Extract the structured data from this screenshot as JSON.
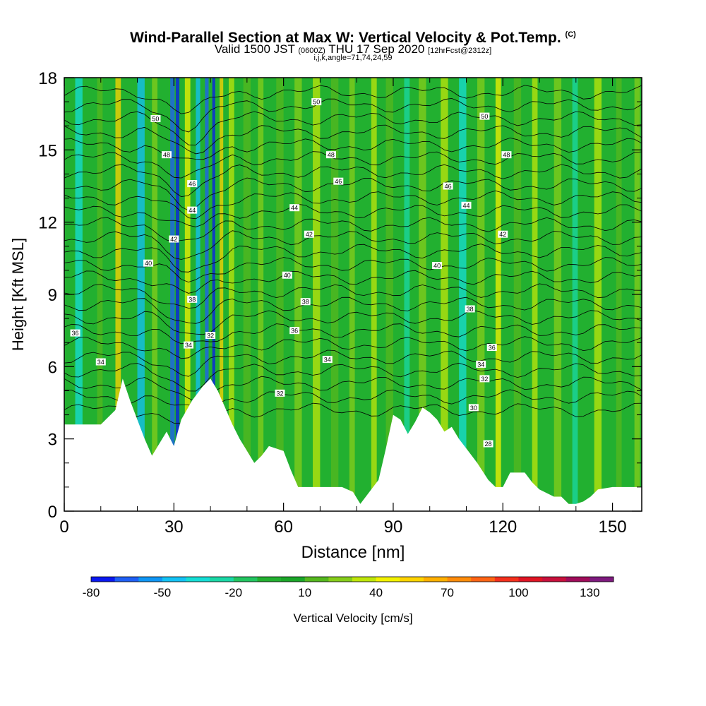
{
  "title": {
    "main": "Wind-Parallel Section at Max W: Vertical Velocity & Pot.Temp.",
    "copyright": "(C)",
    "valid_prefix": "Valid 1500 JST",
    "valid_z": "(0600Z)",
    "valid_date": "THU 17 Sep 2020",
    "forecast": "[12hrFcst@2312z]",
    "indices": "i,j,k,angle=71,74,24,59"
  },
  "chart_data": {
    "type": "heatmap",
    "xlabel": "Distance [nm]",
    "ylabel": "Height [Kft MSL]",
    "xlim": [
      0,
      158
    ],
    "ylim": [
      0,
      18
    ],
    "x_ticks": [
      0,
      30,
      60,
      90,
      120,
      150
    ],
    "y_ticks": [
      0,
      3,
      6,
      9,
      12,
      15,
      18
    ],
    "grid": false,
    "colorbar": {
      "label": "Vertical Velocity [cm/s]",
      "tick_labels": [
        "-80",
        "-50",
        "-20",
        "10",
        "40",
        "70",
        "100",
        "130"
      ],
      "levels": [
        -80,
        -70,
        -60,
        -50,
        -40,
        -30,
        -20,
        -10,
        0,
        10,
        20,
        30,
        40,
        50,
        60,
        70,
        80,
        90,
        100,
        110,
        120,
        130,
        140
      ],
      "colors": [
        "#0a18f0",
        "#1f5ff5",
        "#0f96f5",
        "#13c2f5",
        "#15ded6",
        "#1ad8a6",
        "#22c560",
        "#22b030",
        "#1aa628",
        "#55b81e",
        "#86cd1a",
        "#bfe60a",
        "#f3f200",
        "#ffd400",
        "#ffb000",
        "#ff8c0a",
        "#ff6414",
        "#f4301c",
        "#e01424",
        "#c8103c",
        "#a00c5a",
        "#7e1a7e"
      ]
    },
    "terrain_kft": [
      [
        0,
        3.6
      ],
      [
        5,
        3.6
      ],
      [
        10,
        3.6
      ],
      [
        14,
        4.2
      ],
      [
        16,
        5.5
      ],
      [
        18,
        4.6
      ],
      [
        20,
        3.8
      ],
      [
        22,
        3.0
      ],
      [
        24,
        2.3
      ],
      [
        26,
        2.8
      ],
      [
        28,
        3.3
      ],
      [
        30,
        2.7
      ],
      [
        32,
        3.8
      ],
      [
        35,
        4.6
      ],
      [
        38,
        5.2
      ],
      [
        40,
        5.5
      ],
      [
        42,
        5.0
      ],
      [
        44,
        4.3
      ],
      [
        46,
        3.6
      ],
      [
        48,
        3.0
      ],
      [
        50,
        2.5
      ],
      [
        52,
        2.0
      ],
      [
        54,
        2.3
      ],
      [
        56,
        2.7
      ],
      [
        60,
        2.5
      ],
      [
        62,
        1.7
      ],
      [
        64,
        1.0
      ],
      [
        68,
        1.0
      ],
      [
        72,
        1.0
      ],
      [
        76,
        1.0
      ],
      [
        79,
        0.8
      ],
      [
        81,
        0.3
      ],
      [
        83,
        0.7
      ],
      [
        86,
        1.3
      ],
      [
        88,
        2.6
      ],
      [
        90,
        4.0
      ],
      [
        92,
        3.8
      ],
      [
        94,
        3.2
      ],
      [
        96,
        3.7
      ],
      [
        98,
        4.3
      ],
      [
        100,
        4.1
      ],
      [
        102,
        3.8
      ],
      [
        104,
        3.3
      ],
      [
        106,
        3.5
      ],
      [
        108,
        3.0
      ],
      [
        110,
        2.6
      ],
      [
        113,
        2.0
      ],
      [
        116,
        1.3
      ],
      [
        118,
        1.0
      ],
      [
        120,
        1.0
      ],
      [
        122,
        1.6
      ],
      [
        124,
        1.6
      ],
      [
        126,
        1.6
      ],
      [
        128,
        1.2
      ],
      [
        130,
        0.9
      ],
      [
        134,
        0.6
      ],
      [
        136,
        0.6
      ],
      [
        138,
        0.3
      ],
      [
        140,
        0.3
      ],
      [
        142,
        0.4
      ],
      [
        144,
        0.6
      ],
      [
        146,
        0.9
      ],
      [
        150,
        1.0
      ],
      [
        154,
        1.0
      ],
      [
        156,
        1.0
      ],
      [
        158,
        1.0
      ]
    ],
    "isotherm_labels": [
      {
        "text": "50",
        "x": 69,
        "y": 17.0
      },
      {
        "text": "50",
        "x": 25,
        "y": 16.3
      },
      {
        "text": "50",
        "x": 115,
        "y": 16.4
      },
      {
        "text": "48",
        "x": 28,
        "y": 14.8
      },
      {
        "text": "48",
        "x": 73,
        "y": 14.8
      },
      {
        "text": "48",
        "x": 121,
        "y": 14.8
      },
      {
        "text": "46",
        "x": 35,
        "y": 13.6
      },
      {
        "text": "46",
        "x": 75,
        "y": 13.7
      },
      {
        "text": "46",
        "x": 105,
        "y": 13.5
      },
      {
        "text": "44",
        "x": 35,
        "y": 12.5
      },
      {
        "text": "44",
        "x": 63,
        "y": 12.6
      },
      {
        "text": "44",
        "x": 110,
        "y": 12.7
      },
      {
        "text": "42",
        "x": 30,
        "y": 11.3
      },
      {
        "text": "42",
        "x": 67,
        "y": 11.5
      },
      {
        "text": "42",
        "x": 120,
        "y": 11.5
      },
      {
        "text": "40",
        "x": 23,
        "y": 10.3
      },
      {
        "text": "40",
        "x": 61,
        "y": 9.8
      },
      {
        "text": "40",
        "x": 102,
        "y": 10.2
      },
      {
        "text": "38",
        "x": 35,
        "y": 8.8
      },
      {
        "text": "38",
        "x": 66,
        "y": 8.7
      },
      {
        "text": "38",
        "x": 111,
        "y": 8.4
      },
      {
        "text": "36",
        "x": 3,
        "y": 7.4
      },
      {
        "text": "36",
        "x": 63,
        "y": 7.5
      },
      {
        "text": "36",
        "x": 117,
        "y": 6.8
      },
      {
        "text": "34",
        "x": 10,
        "y": 6.2
      },
      {
        "text": "34",
        "x": 34,
        "y": 6.9
      },
      {
        "text": "34",
        "x": 72,
        "y": 6.3
      },
      {
        "text": "34",
        "x": 114,
        "y": 6.1
      },
      {
        "text": "32",
        "x": 40,
        "y": 7.3
      },
      {
        "text": "32",
        "x": 59,
        "y": 4.9
      },
      {
        "text": "32",
        "x": 115,
        "y": 5.5
      },
      {
        "text": "30",
        "x": 112,
        "y": 4.3
      },
      {
        "text": "28",
        "x": 116,
        "y": 2.8
      }
    ]
  }
}
